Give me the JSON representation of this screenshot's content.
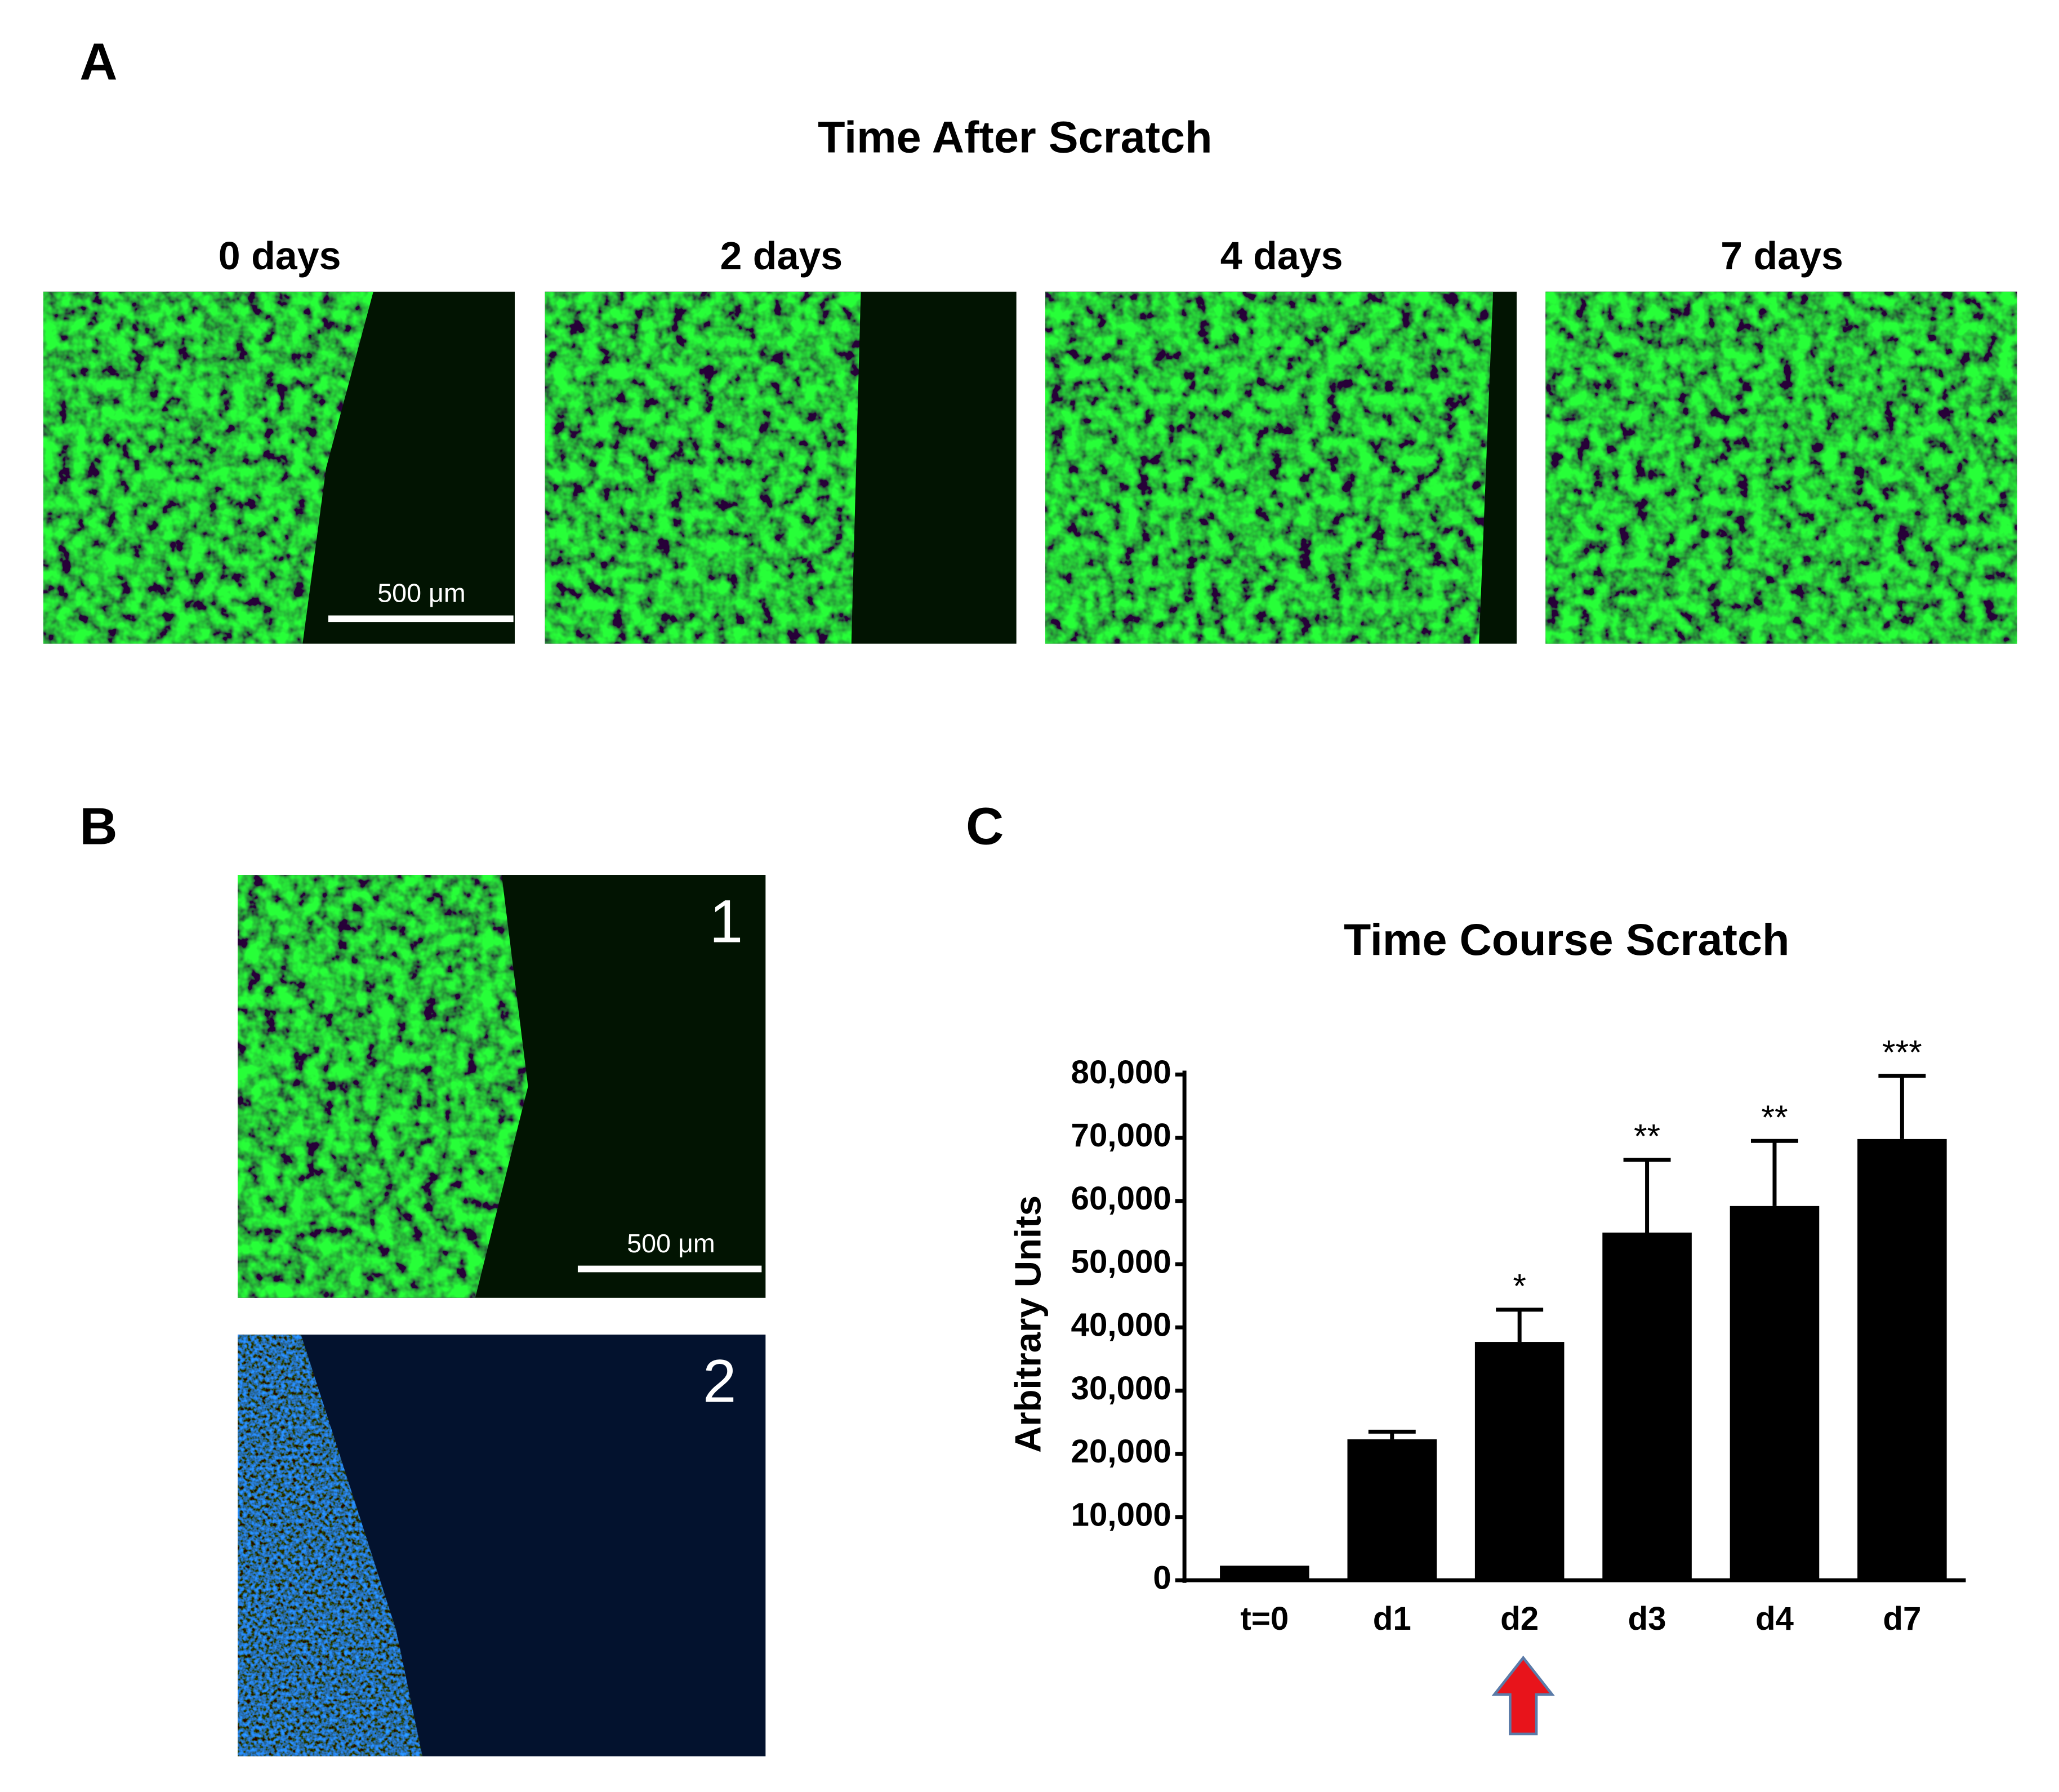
{
  "panel_labels": [
    "A",
    "B",
    "C"
  ],
  "panel_a": {
    "title": "Time After Scratch",
    "images": [
      "0 days",
      "2 days",
      "4 days",
      "7 days"
    ],
    "scale_bar": "500 μm"
  },
  "panel_b": {
    "images": [
      "1",
      "2"
    ],
    "scale_bar": "500 μm"
  },
  "chart_data": {
    "type": "bar",
    "title": "Time Course Scratch",
    "y_label": "Arbitrary Units",
    "categories": [
      "t=0",
      "d1",
      "d2",
      "d3",
      "d4",
      "d7"
    ],
    "values": [
      2300,
      22300,
      37700,
      55000,
      59200,
      69800
    ],
    "errors": [
      null,
      1200,
      5100,
      11500,
      10300,
      10000
    ],
    "significance": [
      null,
      null,
      "*",
      "**",
      "**",
      "***"
    ],
    "color": "#000000",
    "ylim": [
      0,
      80000
    ],
    "yticks": [
      {
        "value": 0,
        "label": "0"
      },
      {
        "value": 10000,
        "label": "10,000"
      },
      {
        "value": 20000,
        "label": "20,000"
      },
      {
        "value": 30000,
        "label": "30,000"
      },
      {
        "value": 40000,
        "label": "40,000"
      },
      {
        "value": 50000,
        "label": "50,000"
      },
      {
        "value": 60000,
        "label": "60,000"
      },
      {
        "value": 70000,
        "label": "70,000"
      },
      {
        "value": 80000,
        "label": "80,000"
      }
    ]
  }
}
